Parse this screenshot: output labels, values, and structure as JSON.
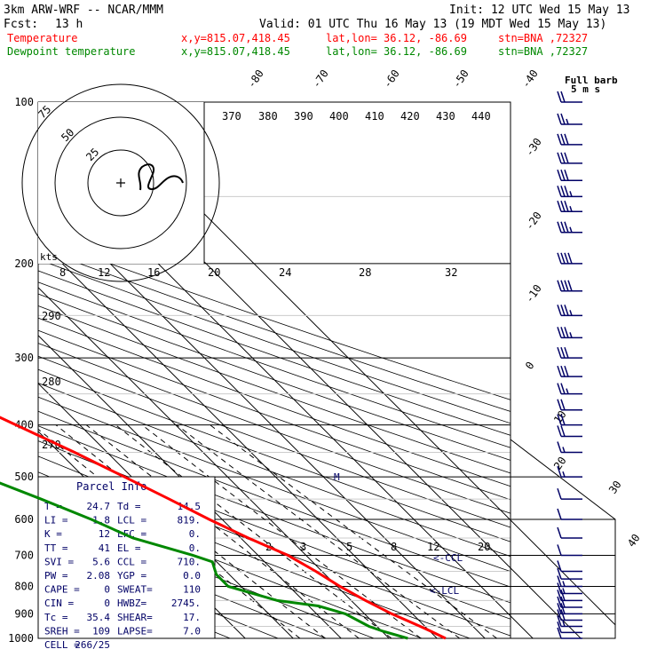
{
  "header": {
    "model": "3km ARW-WRF -- NCAR/MMM",
    "init": "Init: 12 UTC Wed 15 May 13",
    "fcst_label": "Fcst:",
    "fcst_value": "13 h",
    "valid": "Valid: 01 UTC Thu 16 May 13 (19 MDT Wed 15 May 13)",
    "temp_line": {
      "name": "Temperature",
      "xy": "x,y=815.07,418.45",
      "latlon": "lat,lon= 36.12, -86.69",
      "stn": "stn=BNA ,72327"
    },
    "dew_line": {
      "name": "Dewpoint temperature",
      "xy": "x,y=815.07,418.45",
      "latlon": "lat,lon= 36.12, -86.69",
      "stn": "stn=BNA ,72327"
    }
  },
  "colors": {
    "temperature": "#ff0000",
    "dewpoint": "#008800",
    "barb_and_index": "#000066",
    "grid": "#000000"
  },
  "hodograph": {
    "ring_labels": [
      "25",
      "50",
      "75"
    ],
    "units_label": "kts"
  },
  "barb_title": {
    "line1": "Full barb",
    "line2": "5 m s"
  },
  "parcel_info": {
    "title": "Parcel Info",
    "rows": [
      [
        "T  =",
        "24.7",
        "Td =",
        "14.5"
      ],
      [
        "LI =",
        "1.8",
        "LCL =",
        "819."
      ],
      [
        "K  =",
        "12",
        "LFC =",
        "0."
      ],
      [
        "TT =",
        "41",
        "EL  =",
        "0."
      ],
      [
        "SVI =",
        "5.6",
        "CCL =",
        "710."
      ],
      [
        "PW =",
        "2.08",
        "YGP =",
        "0.0"
      ],
      [
        "CAPE =",
        "0",
        "SWEAT=",
        "110"
      ],
      [
        "CIN =",
        "0",
        "HWBZ=",
        "2745."
      ],
      [
        "Tc =",
        "35.4",
        "SHEAR=",
        "17."
      ],
      [
        "SREH =",
        "109",
        "LAPSE=",
        "7.0"
      ],
      [
        "CELL =",
        "266/25",
        "",
        ""
      ]
    ]
  },
  "annotations": {
    "ccl_marker": "<-CCL",
    "lcl_marker": "<-LCL",
    "level_marker": "M"
  },
  "chart_data": {
    "type": "line",
    "subtype": "skew-T log-P diagram",
    "y_axis": {
      "label": "",
      "scale": "log",
      "ticks": [
        100,
        200,
        300,
        400,
        500,
        600,
        700,
        800,
        900,
        1000
      ],
      "ylim": [
        1000,
        100
      ]
    },
    "isotherm_labels": [
      "-80",
      "-70",
      "-60",
      "-50",
      "-40",
      "-30",
      "-20",
      "-10",
      "0",
      "10",
      "20",
      "30",
      "40"
    ],
    "theta_labels": [
      "370",
      "380",
      "390",
      "400",
      "410",
      "420",
      "430",
      "440"
    ],
    "theta_labels_lower": [
      "290",
      "280",
      "270"
    ],
    "mixing_ratio_labels_upper": [
      "8",
      "12",
      "16",
      "20",
      "24",
      "28",
      "32"
    ],
    "mixing_ratio_labels_lower": [
      "2",
      "3",
      "5",
      "8",
      "12",
      "20"
    ],
    "series": [
      {
        "name": "Temperature",
        "points": [
          [
            1000,
            21.8
          ],
          [
            970,
            20.2
          ],
          [
            950,
            19.0
          ],
          [
            900,
            15.7
          ],
          [
            850,
            13.0
          ],
          [
            800,
            10.6
          ],
          [
            750,
            8.7
          ],
          [
            700,
            6.2
          ],
          [
            650,
            1.6
          ],
          [
            600,
            -2.7
          ],
          [
            550,
            -6.8
          ],
          [
            500,
            -11.5
          ],
          [
            450,
            -16.8
          ],
          [
            400,
            -23.3
          ],
          [
            350,
            -30.7
          ],
          [
            300,
            -39.1
          ],
          [
            250,
            -49.3
          ],
          [
            200,
            -61.0
          ],
          [
            175,
            -68.0
          ],
          [
            150,
            -74.0
          ],
          [
            125,
            -76.6
          ],
          [
            100,
            -79.1
          ]
        ]
      },
      {
        "name": "Dewpoint temperature",
        "points": [
          [
            1000,
            13.9
          ],
          [
            970,
            10.2
          ],
          [
            950,
            8.3
          ],
          [
            900,
            6.0
          ],
          [
            870,
            2.0
          ],
          [
            850,
            -5.4
          ],
          [
            800,
            -12.7
          ],
          [
            760,
            -12.7
          ],
          [
            720,
            -10.9
          ],
          [
            700,
            -13.6
          ],
          [
            650,
            -22.5
          ],
          [
            600,
            -27.3
          ],
          [
            550,
            -33.5
          ],
          [
            500,
            -40.8
          ],
          [
            450,
            -42.6
          ],
          [
            400,
            -42.0
          ],
          [
            350,
            -42.4
          ],
          [
            300,
            -50.9
          ],
          [
            250,
            -64.6
          ],
          [
            200,
            -81.2
          ],
          [
            175,
            -88.3
          ],
          [
            150,
            -94.2
          ],
          [
            125,
            -101.5
          ],
          [
            100,
            -111.5
          ]
        ]
      }
    ],
    "wind_barbs": {
      "units": "m s-1 (full barb 5)",
      "levels": [
        1000,
        975,
        950,
        925,
        900,
        875,
        850,
        825,
        800,
        775,
        750,
        700,
        650,
        600,
        550,
        500,
        450,
        420,
        400,
        375,
        350,
        325,
        300,
        275,
        250,
        225,
        200,
        175,
        160,
        150,
        140,
        130,
        120,
        110,
        100
      ],
      "speeds": [
        5,
        6,
        8,
        10,
        11,
        10,
        10,
        9,
        8,
        7,
        5,
        5,
        5,
        6,
        7,
        8,
        9,
        10,
        11,
        12,
        14,
        15,
        17,
        18,
        19,
        20,
        20,
        19,
        18,
        18,
        17,
        16,
        15,
        13,
        12
      ]
    }
  }
}
